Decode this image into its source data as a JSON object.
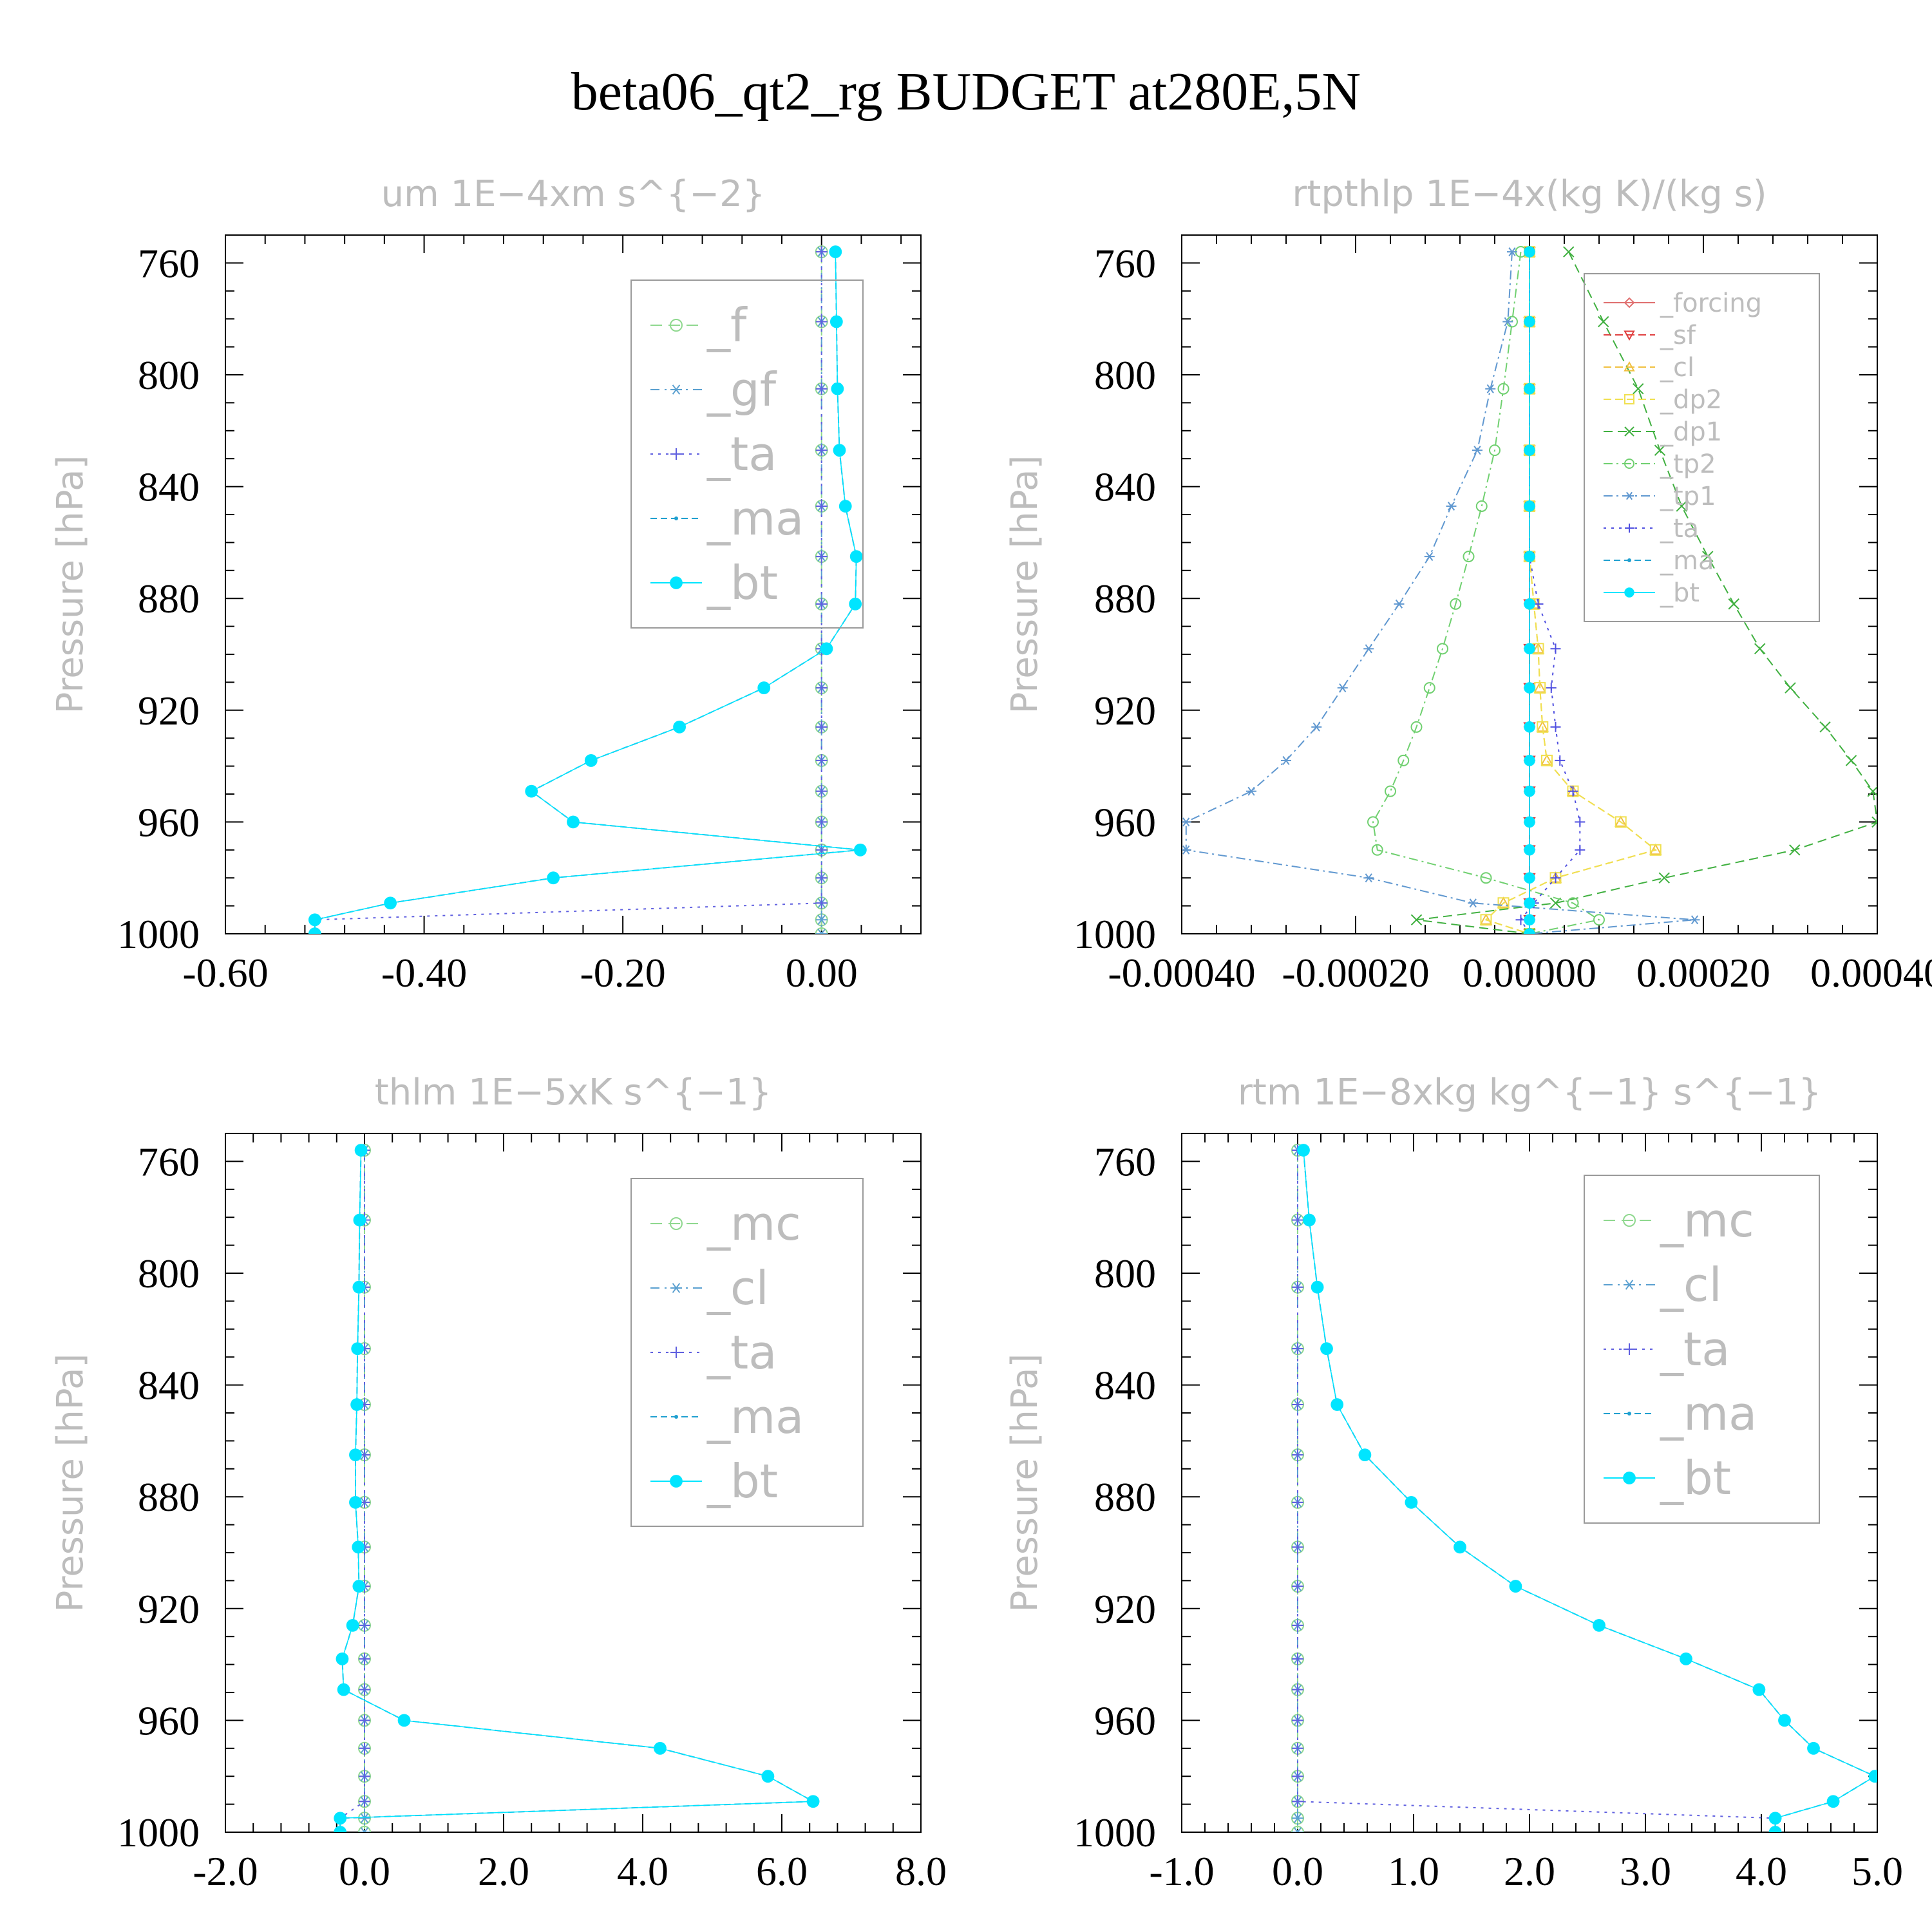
{
  "title": "beta06_qt2_rg  BUDGET at280E,5N",
  "chart_data": [
    {
      "type": "line",
      "title": "um   1E−4xm s^{−2}",
      "ylabel": "Pressure [hPa]",
      "xlim": [
        -0.6,
        0.1
      ],
      "xticks": [
        -0.6,
        -0.4,
        -0.2,
        0.0
      ],
      "xtick_labels": [
        "-0.60",
        "-0.40",
        "-0.20",
        "0.00"
      ],
      "ylim": [
        1000,
        750
      ],
      "yticks": [
        760,
        800,
        840,
        880,
        920,
        960,
        1000
      ],
      "ytick_labels": [
        "760",
        "800",
        "840",
        "880",
        "920",
        "960",
        "1000"
      ],
      "legend_font": 72,
      "y": [
        756,
        781,
        805,
        827,
        847,
        865,
        882,
        898,
        912,
        926,
        938,
        949,
        960,
        970,
        980,
        989,
        995,
        1000
      ],
      "series": [
        {
          "name": "_f",
          "color": "#8fd88f",
          "marker": "circle",
          "dash": "18,10",
          "values": [
            0,
            0,
            0,
            0,
            0,
            0,
            0,
            0,
            0,
            0,
            0,
            0,
            0,
            0,
            0,
            0,
            0,
            0
          ]
        },
        {
          "name": "_gf",
          "color": "#5aa0d0",
          "marker": "star",
          "dash": "14,8,3,8",
          "values": [
            0,
            0,
            0,
            0,
            0,
            0,
            0,
            0,
            0,
            0,
            0,
            0,
            0,
            0,
            0,
            0,
            0,
            0
          ]
        },
        {
          "name": "_ta",
          "color": "#6060e0",
          "marker": "plus",
          "dash": "4,8",
          "values": [
            0,
            0,
            0,
            0,
            0,
            0,
            0,
            0,
            0,
            0,
            0,
            0,
            0,
            0,
            0,
            0,
            -0.51,
            -0.51
          ]
        },
        {
          "name": "_ma",
          "color": "#20a0d0",
          "marker": "dot",
          "dash": "10,6",
          "values": [
            0.014,
            0.015,
            0.016,
            0.018,
            0.024,
            0.035,
            0.034,
            0.005,
            -0.058,
            -0.143,
            -0.232,
            -0.292,
            -0.25,
            0.039,
            -0.27,
            -0.434,
            -0.51,
            -0.51
          ]
        },
        {
          "name": "_bt",
          "color": "#00e5ff",
          "marker": "bigdot",
          "dash": "none",
          "values": [
            0.014,
            0.015,
            0.016,
            0.018,
            0.024,
            0.035,
            0.034,
            0.005,
            -0.058,
            -0.143,
            -0.232,
            -0.292,
            -0.25,
            0.039,
            -0.27,
            -0.434,
            -0.51,
            -0.51
          ]
        }
      ]
    },
    {
      "type": "line",
      "title": "rtpthlp   1E−4x(kg K)/(kg s)",
      "ylabel": "Pressure [hPa]",
      "xlim": [
        -0.0004,
        0.0004
      ],
      "xticks": [
        -0.0004,
        -0.0002,
        0.0,
        0.0002,
        0.0004
      ],
      "xtick_labels": [
        "-0.00040",
        "-0.00020",
        "0.00000",
        "0.00020",
        "0.00040"
      ],
      "ylim": [
        1000,
        750
      ],
      "yticks": [
        760,
        800,
        840,
        880,
        920,
        960,
        1000
      ],
      "ytick_labels": [
        "760",
        "800",
        "840",
        "880",
        "920",
        "960",
        "1000"
      ],
      "legend_font": 40,
      "y": [
        756,
        781,
        805,
        827,
        847,
        865,
        882,
        898,
        912,
        926,
        938,
        949,
        960,
        970,
        980,
        989,
        995,
        1000
      ],
      "series": [
        {
          "name": "_forcing",
          "color": "#e07070",
          "marker": "diamond",
          "dash": "none",
          "values": [
            0,
            0,
            0,
            0,
            0,
            0,
            0,
            0,
            0,
            0,
            0,
            0,
            0,
            0,
            0,
            0,
            0,
            0
          ]
        },
        {
          "name": "_sf",
          "color": "#e04040",
          "marker": "tridown",
          "dash": "12,6",
          "values": [
            0,
            0,
            0,
            0,
            0,
            0,
            0,
            0,
            0,
            0,
            0,
            0,
            0,
            0,
            0,
            0,
            0,
            0
          ]
        },
        {
          "name": "_cl",
          "color": "#f0c040",
          "marker": "triup",
          "dash": "12,6",
          "values": [
            0,
            0,
            0,
            0,
            0,
            0,
            5e-06,
            1e-05,
            1.2e-05,
            1.5e-05,
            2e-05,
            5e-05,
            0.000105,
            0.000145,
            3e-05,
            -3e-05,
            -5e-05,
            0
          ]
        },
        {
          "name": "_dp2",
          "color": "#f0e050",
          "marker": "square",
          "dash": "12,6",
          "values": [
            0,
            0,
            0,
            0,
            0,
            0,
            5e-06,
            1e-05,
            1.2e-05,
            1.5e-05,
            2e-05,
            5e-05,
            0.000105,
            0.000145,
            3e-05,
            -3e-05,
            -5e-05,
            0
          ]
        },
        {
          "name": "_dp1",
          "color": "#40b040",
          "marker": "cross",
          "dash": "14,8",
          "values": [
            4.5e-05,
            8.5e-05,
            0.000125,
            0.00015,
            0.000175,
            0.000205,
            0.000235,
            0.000265,
            0.0003,
            0.00034,
            0.00037,
            0.000395,
            0.0004,
            0.000305,
            0.000155,
            3e-05,
            -0.00013,
            0
          ]
        },
        {
          "name": "_tp2",
          "color": "#70d070",
          "marker": "circle",
          "dash": "14,6,3,6",
          "values": [
            -1e-05,
            -2e-05,
            -3e-05,
            -4e-05,
            -5.5e-05,
            -7e-05,
            -8.5e-05,
            -0.0001,
            -0.000115,
            -0.00013,
            -0.000145,
            -0.00016,
            -0.00018,
            -0.000175,
            -5e-05,
            5e-05,
            8e-05,
            0
          ]
        },
        {
          "name": "_tp1",
          "color": "#6098d0",
          "marker": "star",
          "dash": "14,6,3,6",
          "values": [
            -2e-05,
            -2.5e-05,
            -4.5e-05,
            -6e-05,
            -9e-05,
            -0.000115,
            -0.00015,
            -0.000185,
            -0.000215,
            -0.000245,
            -0.00028,
            -0.00032,
            -0.000395,
            -0.000395,
            -0.000185,
            -6.5e-05,
            0.00019,
            0
          ]
        },
        {
          "name": "_ta",
          "color": "#5050e0",
          "marker": "plus",
          "dash": "4,8",
          "values": [
            0,
            0,
            0,
            0,
            0,
            0,
            1e-05,
            3e-05,
            2.5e-05,
            3e-05,
            3.5e-05,
            5e-05,
            5.8e-05,
            5.8e-05,
            3e-05,
            5e-06,
            -1e-05,
            0
          ]
        },
        {
          "name": "_ma",
          "color": "#20a0d0",
          "marker": "dot",
          "dash": "10,6",
          "values": [
            0,
            0,
            0,
            0,
            0,
            0,
            0,
            0,
            0,
            0,
            0,
            0,
            0,
            0,
            0,
            0,
            0,
            0
          ]
        },
        {
          "name": "_bt",
          "color": "#00e5ff",
          "marker": "bigdot",
          "dash": "none",
          "values": [
            0,
            0,
            0,
            0,
            0,
            0,
            0,
            0,
            0,
            0,
            0,
            0,
            0,
            0,
            0,
            0,
            0,
            0
          ]
        }
      ]
    },
    {
      "type": "line",
      "title": "thlm   1E−5xK s^{−1}",
      "ylabel": "Pressure [hPa]",
      "xlim": [
        -2.0,
        8.0
      ],
      "xticks": [
        -2.0,
        0.0,
        2.0,
        4.0,
        6.0,
        8.0
      ],
      "xtick_labels": [
        "-2.0",
        "0.0",
        "2.0",
        "4.0",
        "6.0",
        "8.0"
      ],
      "ylim": [
        1000,
        750
      ],
      "yticks": [
        760,
        800,
        840,
        880,
        920,
        960,
        1000
      ],
      "ytick_labels": [
        "760",
        "800",
        "840",
        "880",
        "920",
        "960",
        "1000"
      ],
      "legend_font": 72,
      "y": [
        756,
        781,
        805,
        827,
        847,
        865,
        882,
        898,
        912,
        926,
        938,
        949,
        960,
        970,
        980,
        989,
        995,
        1000
      ],
      "series": [
        {
          "name": "_mc",
          "color": "#8fd88f",
          "marker": "circle",
          "dash": "18,10",
          "values": [
            0,
            0,
            0,
            0,
            0,
            0,
            0,
            0,
            0,
            0,
            0,
            0,
            0,
            0,
            0,
            0,
            0,
            0
          ]
        },
        {
          "name": "_cl",
          "color": "#5aa0d0",
          "marker": "star",
          "dash": "14,8,3,8",
          "values": [
            0,
            0,
            0,
            0,
            0,
            0,
            0,
            0,
            0,
            0,
            0,
            0,
            0,
            0,
            0,
            0,
            0,
            0
          ]
        },
        {
          "name": "_ta",
          "color": "#6060e0",
          "marker": "plus",
          "dash": "4,8",
          "values": [
            0,
            0,
            0,
            0,
            0,
            0,
            0,
            0,
            0,
            0,
            0,
            0,
            0,
            0,
            0,
            0,
            -0.35,
            -0.35
          ]
        },
        {
          "name": "_ma",
          "color": "#20a0d0",
          "marker": "dot",
          "dash": "10,6",
          "values": [
            -0.05,
            -0.07,
            -0.08,
            -0.1,
            -0.11,
            -0.13,
            -0.13,
            -0.09,
            -0.08,
            -0.17,
            -0.32,
            -0.3,
            0.57,
            4.25,
            5.8,
            6.45,
            -0.35,
            -0.35
          ]
        },
        {
          "name": "_bt",
          "color": "#00e5ff",
          "marker": "bigdot",
          "dash": "none",
          "values": [
            -0.05,
            -0.07,
            -0.08,
            -0.1,
            -0.11,
            -0.13,
            -0.13,
            -0.09,
            -0.08,
            -0.17,
            -0.32,
            -0.3,
            0.57,
            4.25,
            5.8,
            6.45,
            -0.35,
            -0.35
          ]
        }
      ]
    },
    {
      "type": "line",
      "title": "rtm   1E−8xkg kg^{−1} s^{−1}",
      "ylabel": "Pressure [hPa]",
      "xlim": [
        -1.0,
        5.0
      ],
      "xticks": [
        -1.0,
        0.0,
        1.0,
        2.0,
        3.0,
        4.0,
        5.0
      ],
      "xtick_labels": [
        "-1.0",
        "0.0",
        "1.0",
        "2.0",
        "3.0",
        "4.0",
        "5.0"
      ],
      "ylim": [
        1000,
        750
      ],
      "yticks": [
        760,
        800,
        840,
        880,
        920,
        960,
        1000
      ],
      "ytick_labels": [
        "760",
        "800",
        "840",
        "880",
        "920",
        "960",
        "1000"
      ],
      "legend_font": 72,
      "y": [
        756,
        781,
        805,
        827,
        847,
        865,
        882,
        898,
        912,
        926,
        938,
        949,
        960,
        970,
        980,
        989,
        995,
        1000
      ],
      "series": [
        {
          "name": "_mc",
          "color": "#8fd88f",
          "marker": "circle",
          "dash": "18,10",
          "values": [
            0,
            0,
            0,
            0,
            0,
            0,
            0,
            0,
            0,
            0,
            0,
            0,
            0,
            0,
            0,
            0,
            0,
            0
          ]
        },
        {
          "name": "_cl",
          "color": "#5aa0d0",
          "marker": "star",
          "dash": "14,8,3,8",
          "values": [
            0,
            0,
            0,
            0,
            0,
            0,
            0,
            0,
            0,
            0,
            0,
            0,
            0,
            0,
            0,
            0,
            0,
            0
          ]
        },
        {
          "name": "_ta",
          "color": "#6060e0",
          "marker": "plus",
          "dash": "4,8",
          "values": [
            0,
            0,
            0,
            0,
            0,
            0,
            0,
            0,
            0,
            0,
            0,
            0,
            0,
            0,
            0,
            0,
            4.12,
            4.12
          ]
        },
        {
          "name": "_ma",
          "color": "#20a0d0",
          "marker": "dot",
          "dash": "10,6",
          "values": [
            0.05,
            0.1,
            0.17,
            0.25,
            0.34,
            0.58,
            0.98,
            1.4,
            1.88,
            2.6,
            3.35,
            3.98,
            4.2,
            4.45,
            4.98,
            4.62,
            4.12,
            4.12
          ]
        },
        {
          "name": "_bt",
          "color": "#00e5ff",
          "marker": "bigdot",
          "dash": "none",
          "values": [
            0.05,
            0.1,
            0.17,
            0.25,
            0.34,
            0.58,
            0.98,
            1.4,
            1.88,
            2.6,
            3.35,
            3.98,
            4.2,
            4.45,
            4.98,
            4.62,
            4.12,
            4.12
          ]
        }
      ]
    }
  ]
}
